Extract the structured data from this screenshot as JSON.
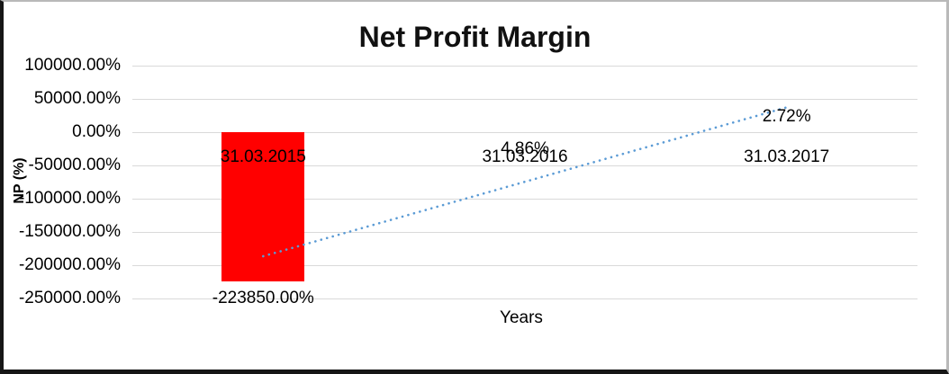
{
  "chart_data": {
    "type": "bar",
    "title": "Net Profit Margin",
    "xlabel": "Years",
    "ylabel": "NP (%)",
    "categories": [
      "31.03.2015",
      "31.03.2016",
      "31.03.2017"
    ],
    "series": [
      {
        "name": "Net Profit Margin",
        "values": [
          -223850.0,
          4.86,
          2.72
        ]
      }
    ],
    "data_labels": [
      "-223850.00%",
      "4.86%",
      "2.72%"
    ],
    "ylim": [
      -250000,
      100000
    ],
    "ytick_step": 50000,
    "ytick_labels": [
      "100000.00%",
      "50000.00%",
      "0.00%",
      "-50000.00%",
      "-100000.00%",
      "-150000.00%",
      "-200000.00%",
      "-250000.00%"
    ],
    "grid": true,
    "legend": "none",
    "trendline": {
      "type": "linear",
      "style": "dotted",
      "start_value": -186540,
      "end_value": 37312
    },
    "colors": {
      "bar": "#ff0000",
      "trendline": "#5b9bd5",
      "gridline": "#d9d9d9",
      "text": "#000000",
      "frame_dark": "#161616",
      "frame_light": "#b9b9b9"
    }
  }
}
